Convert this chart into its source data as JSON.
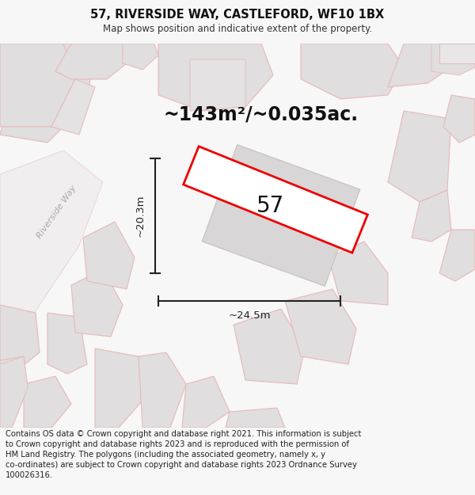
{
  "title": "57, RIVERSIDE WAY, CASTLEFORD, WF10 1BX",
  "subtitle": "Map shows position and indicative extent of the property.",
  "area_label": "~143m²/~0.035ac.",
  "number_label": "57",
  "width_label": "~24.5m",
  "height_label": "~20.3m",
  "footer": "Contains OS data © Crown copyright and database right 2021. This information is subject to Crown copyright and database rights 2023 and is reproduced with the permission of HM Land Registry. The polygons (including the associated geometry, namely x, y co-ordinates) are subject to Crown copyright and database rights 2023 Ordnance Survey 100026316.",
  "bg_color": "#f7f7f7",
  "map_bg": "#f7f7f7",
  "plot_color": "#ee0000",
  "plot_fill": "#ffffff",
  "building_fill": "#e0dede",
  "building_stroke": "#e8b8b8",
  "road_stroke": "#f0c8c8",
  "title_fontsize": 10.5,
  "subtitle_fontsize": 8.5,
  "area_fontsize": 17,
  "number_fontsize": 20,
  "footer_fontsize": 7.2,
  "dim_line_color": "#222222",
  "road_label_color": "#aaaaaa",
  "road_label_fontsize": 8
}
